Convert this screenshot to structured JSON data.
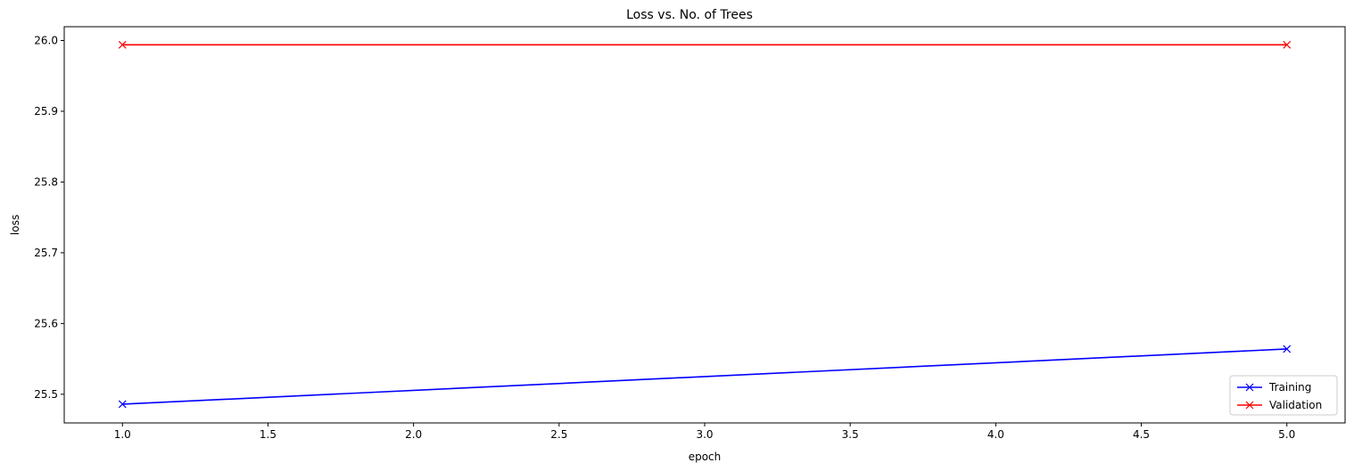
{
  "chart_data": {
    "type": "line",
    "title": "Loss vs. No. of Trees",
    "xlabel": "epoch",
    "ylabel": "loss",
    "xlim": [
      0.8,
      5.2
    ],
    "ylim": [
      25.4595,
      26.0195
    ],
    "xticks": [
      1.0,
      1.5,
      2.0,
      2.5,
      3.0,
      3.5,
      4.0,
      4.5,
      5.0
    ],
    "xtick_labels": [
      "1.0",
      "1.5",
      "2.0",
      "2.5",
      "3.0",
      "3.5",
      "4.0",
      "4.5",
      "5.0"
    ],
    "yticks": [
      25.5,
      25.6,
      25.7,
      25.8,
      25.9,
      26.0
    ],
    "ytick_labels": [
      "25.5",
      "25.6",
      "25.7",
      "25.8",
      "25.9",
      "26.0"
    ],
    "grid": false,
    "legend_position": "lower-right",
    "series": [
      {
        "name": "Training",
        "color": "#0000ff",
        "marker": "x",
        "x": [
          1,
          5
        ],
        "y": [
          25.486,
          25.564
        ]
      },
      {
        "name": "Validation",
        "color": "#ff0000",
        "marker": "x",
        "x": [
          1,
          5
        ],
        "y": [
          25.994,
          25.994
        ]
      }
    ]
  }
}
